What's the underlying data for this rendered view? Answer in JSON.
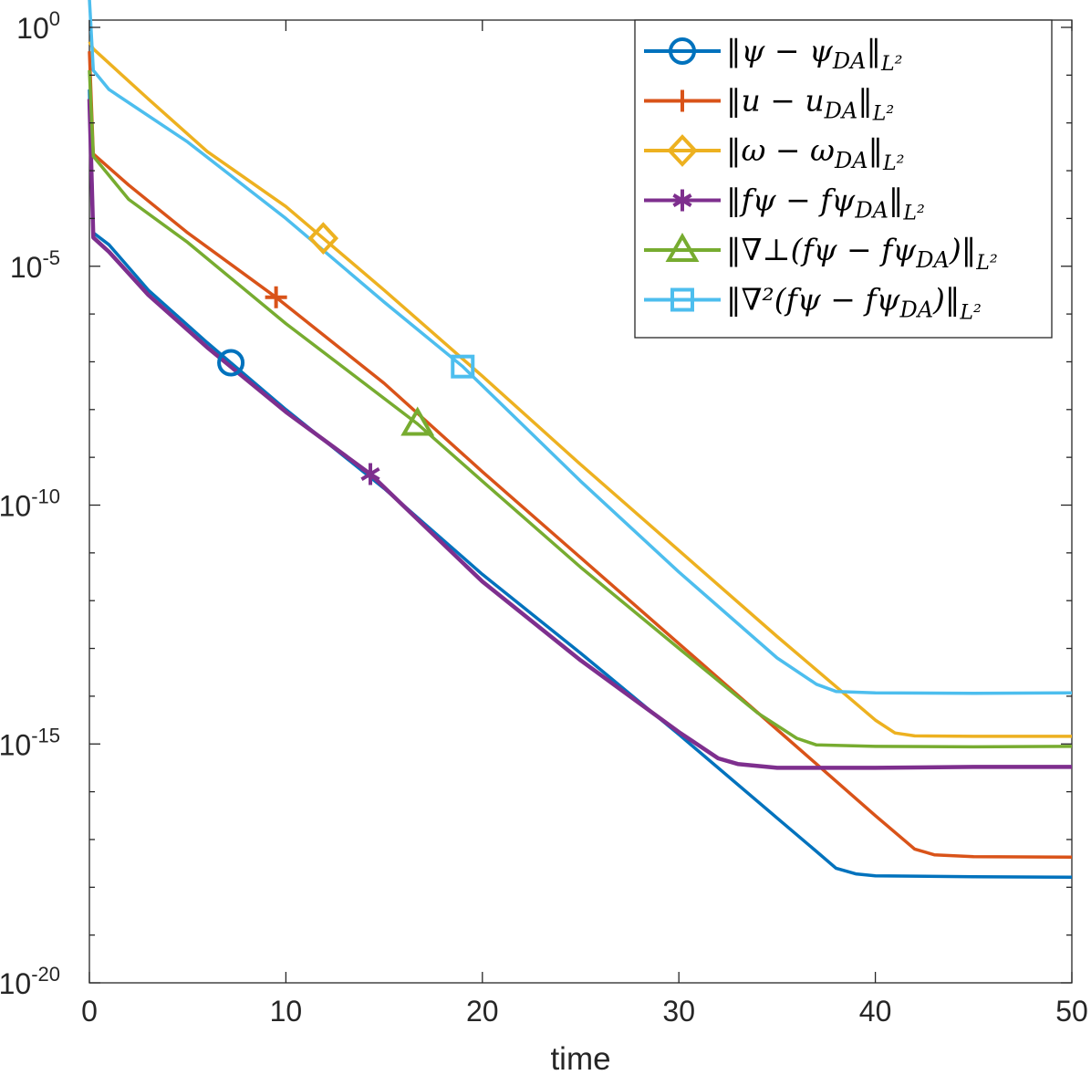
{
  "chart_data": {
    "type": "line",
    "title": "",
    "xlabel": "time",
    "ylabel": "",
    "xlim": [
      0,
      50
    ],
    "ylim_log10": [
      -20,
      0.5
    ],
    "yscale": "log",
    "xticks": [
      0,
      10,
      20,
      30,
      40,
      50
    ],
    "xtick_labels": [
      "0",
      "10",
      "20",
      "30",
      "40",
      "50"
    ],
    "yticks": [
      {
        "log10": 0,
        "base": "10",
        "exp": "0"
      },
      {
        "log10": -5,
        "base": "10",
        "exp": "-5"
      },
      {
        "log10": -10,
        "base": "10",
        "exp": "-10"
      },
      {
        "log10": -15,
        "base": "10",
        "exp": "-15"
      },
      {
        "log10": -20,
        "base": "10",
        "exp": "-20"
      }
    ],
    "legend_position": "top-right",
    "series": [
      {
        "name": "||ψ − ψ_DA||_{L²}",
        "legend": "‖ψ − ψDA‖L²",
        "color": "#0072BD",
        "marker": "circle",
        "marker_at": 7.2,
        "points": [
          [
            0,
            -1.3
          ],
          [
            0.2,
            -4.3
          ],
          [
            1,
            -4.55
          ],
          [
            3,
            -5.5
          ],
          [
            6,
            -6.6
          ],
          [
            10,
            -8.0
          ],
          [
            15,
            -9.65
          ],
          [
            20,
            -11.45
          ],
          [
            25,
            -13.1
          ],
          [
            30,
            -14.8
          ],
          [
            35,
            -16.55
          ],
          [
            37,
            -17.25
          ],
          [
            38,
            -17.6
          ],
          [
            39,
            -17.72
          ],
          [
            40,
            -17.76
          ],
          [
            45,
            -17.78
          ],
          [
            50,
            -17.79
          ]
        ]
      },
      {
        "name": "||u − u_DA||_{L²}",
        "legend": "‖u − uDA‖L²",
        "color": "#D95319",
        "marker": "plus",
        "marker_at": 9.5,
        "points": [
          [
            0,
            -0.5
          ],
          [
            0.2,
            -2.65
          ],
          [
            2,
            -3.3
          ],
          [
            5,
            -4.3
          ],
          [
            9.5,
            -5.65
          ],
          [
            15,
            -7.45
          ],
          [
            20,
            -9.3
          ],
          [
            25,
            -11.1
          ],
          [
            30,
            -12.9
          ],
          [
            35,
            -14.7
          ],
          [
            40,
            -16.5
          ],
          [
            42,
            -17.2
          ],
          [
            43,
            -17.32
          ],
          [
            45,
            -17.36
          ],
          [
            50,
            -17.37
          ]
        ]
      },
      {
        "name": "||ω − ω_DA||_{L²}",
        "legend": "‖ω − ωDA‖L²",
        "color": "#EDB120",
        "marker": "diamond",
        "marker_at": 11.9,
        "points": [
          [
            0,
            -0.3
          ],
          [
            0.2,
            -0.45
          ],
          [
            3,
            -1.5
          ],
          [
            6,
            -2.6
          ],
          [
            10,
            -3.75
          ],
          [
            15,
            -5.5
          ],
          [
            20,
            -7.3
          ],
          [
            25,
            -9.15
          ],
          [
            30,
            -10.95
          ],
          [
            35,
            -12.75
          ],
          [
            38,
            -13.8
          ],
          [
            40,
            -14.5
          ],
          [
            41,
            -14.77
          ],
          [
            42,
            -14.83
          ],
          [
            45,
            -14.84
          ],
          [
            50,
            -14.84
          ]
        ]
      },
      {
        "name": "||f^ψ − f^ψ_DA||_{L²}",
        "legend": "‖fψ − fψDA‖L²",
        "color": "#7E2F8E",
        "marker": "asterisk",
        "marker_at": 14.3,
        "points": [
          [
            0,
            -1.5
          ],
          [
            0.2,
            -4.4
          ],
          [
            1,
            -4.7
          ],
          [
            3,
            -5.6
          ],
          [
            6,
            -6.7
          ],
          [
            10,
            -8.05
          ],
          [
            14.3,
            -9.35
          ],
          [
            20,
            -11.6
          ],
          [
            25,
            -13.25
          ],
          [
            30,
            -14.75
          ],
          [
            32,
            -15.3
          ],
          [
            33,
            -15.42
          ],
          [
            35,
            -15.5
          ],
          [
            40,
            -15.5
          ],
          [
            45,
            -15.48
          ],
          [
            50,
            -15.48
          ]
        ]
      },
      {
        "name": "||∇^⊥(f^ψ − f^ψ_DA)||_{L²}",
        "legend": "‖∇⊥(fψ − fψDA)‖L²",
        "color": "#77AC30",
        "marker": "triangle",
        "marker_at": 16.7,
        "points": [
          [
            0,
            -0.9
          ],
          [
            0.2,
            -2.7
          ],
          [
            2,
            -3.6
          ],
          [
            5,
            -4.5
          ],
          [
            10,
            -6.2
          ],
          [
            16.7,
            -8.3
          ],
          [
            20,
            -9.5
          ],
          [
            25,
            -11.3
          ],
          [
            30,
            -13.0
          ],
          [
            34,
            -14.35
          ],
          [
            36,
            -14.88
          ],
          [
            37,
            -15.02
          ],
          [
            40,
            -15.05
          ],
          [
            45,
            -15.06
          ],
          [
            50,
            -15.05
          ]
        ]
      },
      {
        "name": "||∇²(f^ψ − f^ψ_DA)||_{L²}",
        "legend": "‖∇²(fψ − fψDA)‖L²",
        "color": "#4DBEEE",
        "marker": "square",
        "marker_at": 19.0,
        "points": [
          [
            0,
            0.6
          ],
          [
            0.2,
            -0.9
          ],
          [
            1,
            -1.3
          ],
          [
            5,
            -2.4
          ],
          [
            10,
            -4.0
          ],
          [
            15,
            -5.75
          ],
          [
            19,
            -7.1
          ],
          [
            25,
            -9.5
          ],
          [
            30,
            -11.4
          ],
          [
            35,
            -13.2
          ],
          [
            37,
            -13.75
          ],
          [
            38,
            -13.9
          ],
          [
            40,
            -13.93
          ],
          [
            45,
            -13.94
          ],
          [
            50,
            -13.93
          ]
        ]
      }
    ],
    "legend_entries": [
      {
        "pre": "‖ψ − ψ",
        "sub": "DA",
        "post": "‖",
        "sub2": "L²"
      },
      {
        "pre": "‖u − u",
        "sub": "DA",
        "post": "‖",
        "sub2": "L²"
      },
      {
        "pre": "‖ω − ω",
        "sub": "DA",
        "post": "‖",
        "sub2": "L²"
      },
      {
        "pre": "‖fψ − fψ",
        "sub": "DA",
        "post": "‖",
        "sub2": "L²"
      },
      {
        "pre": "‖∇⊥(fψ − fψ",
        "sub": "DA",
        "post": ")‖",
        "sub2": "L²"
      },
      {
        "pre": "‖∇²(fψ − fψ",
        "sub": "DA",
        "post": ")‖",
        "sub2": "L²"
      }
    ]
  }
}
